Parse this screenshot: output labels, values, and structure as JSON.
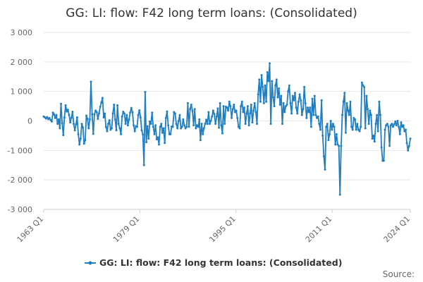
{
  "chart_data": {
    "type": "line",
    "title": "GG: LI: flow: F42 long term loans: (Consolidated)",
    "xlabel": "",
    "ylabel": "",
    "x_start": "1963 Q1",
    "x_end": "2024 Q1",
    "x_ticks": [
      "1963 Q1",
      "1979 Q1",
      "1995 Q1",
      "2011 Q1",
      "2024 Q1"
    ],
    "y_ticks": [
      "3 000",
      "2 000",
      "1 000",
      "0",
      "-1 000",
      "-2 000",
      "-3 000"
    ],
    "ylim": [
      -3000,
      3000
    ],
    "grid": true,
    "legend_position": "bottom",
    "source_label": "Source:",
    "color": "#1f7fc3",
    "series": [
      {
        "name": "GG: LI: flow: F42 long term loans: (Consolidated)",
        "values": [
          150,
          120,
          80,
          130,
          60,
          100,
          30,
          -20,
          280,
          220,
          100,
          200,
          -100,
          50,
          -250,
          580,
          -80,
          -480,
          120,
          530,
          320,
          380,
          200,
          -50,
          110,
          310,
          -100,
          -320,
          -120,
          120,
          -450,
          -800,
          -600,
          -100,
          -220,
          -770,
          -650,
          180,
          70,
          -250,
          50,
          1330,
          220,
          -440,
          220,
          350,
          300,
          70,
          250,
          480,
          620,
          780,
          120,
          250,
          -200,
          -350,
          -100,
          20,
          -300,
          -250,
          250,
          550,
          50,
          -320,
          530,
          -100,
          -250,
          -450,
          150,
          310,
          250,
          -100,
          200,
          -150,
          50,
          280,
          440,
          300,
          -150,
          -350,
          -180,
          -200,
          200,
          360,
          120,
          -320,
          -460,
          -1500,
          980,
          -720,
          -180,
          -600,
          -20,
          -100,
          280,
          -200,
          -450,
          -150,
          -620,
          -560,
          -800,
          -200,
          -100,
          -400,
          -250,
          -750,
          100,
          320,
          -150,
          -450,
          -450,
          -190,
          -200,
          300,
          250,
          -100,
          -250,
          0,
          200,
          -250,
          -200,
          50,
          -150,
          -250,
          -200,
          600,
          -200,
          400,
          550,
          350,
          -150,
          400,
          -250,
          -150,
          -200,
          50,
          -650,
          -100,
          -450,
          -250,
          -100,
          40,
          -100,
          300,
          -100,
          0,
          150,
          350,
          230,
          -100,
          150,
          420,
          -230,
          600,
          -150,
          -420,
          500,
          -100,
          480,
          450,
          350,
          650,
          500,
          100,
          400,
          550,
          300,
          350,
          100,
          -200,
          -250,
          500,
          650,
          300,
          450,
          -100,
          250,
          500,
          -150,
          250,
          550,
          -50,
          350,
          600,
          300,
          -100,
          900,
          1400,
          650,
          1550,
          1150,
          600,
          1200,
          650,
          1650,
          1350,
          1950,
          -100,
          1350,
          800,
          500,
          1200,
          1400,
          800,
          1100,
          550,
          850,
          -100,
          600,
          300,
          500,
          550,
          1000,
          1200,
          600,
          250,
          850,
          700,
          950,
          450,
          250,
          650,
          900,
          700,
          200,
          400,
          1150,
          600,
          100,
          450,
          300,
          450,
          -200,
          750,
          200,
          850,
          200,
          100,
          150,
          -100,
          -300,
          700,
          -500,
          -1200,
          -1650,
          -200,
          -100,
          -650,
          -450,
          0,
          -300,
          -100,
          -200,
          -800,
          -450,
          -800,
          -850,
          -2500,
          -850,
          200,
          650,
          950,
          -400,
          600,
          350,
          200,
          650,
          -200,
          -300,
          100,
          50,
          -300,
          -100,
          -300,
          -350,
          -200,
          1300,
          1200,
          1150,
          -250,
          850,
          400,
          -100,
          350,
          200,
          -600,
          -500,
          -700,
          -100,
          200,
          -350,
          650,
          200,
          -900,
          -1350,
          -1350,
          -300,
          -150,
          -100,
          -200,
          -850,
          -150,
          -100,
          -200,
          -120,
          -20,
          -150,
          0,
          -200,
          -450,
          -50,
          -200,
          -150,
          -350,
          -300,
          -750,
          -1000,
          -850,
          -600
        ]
      }
    ]
  }
}
